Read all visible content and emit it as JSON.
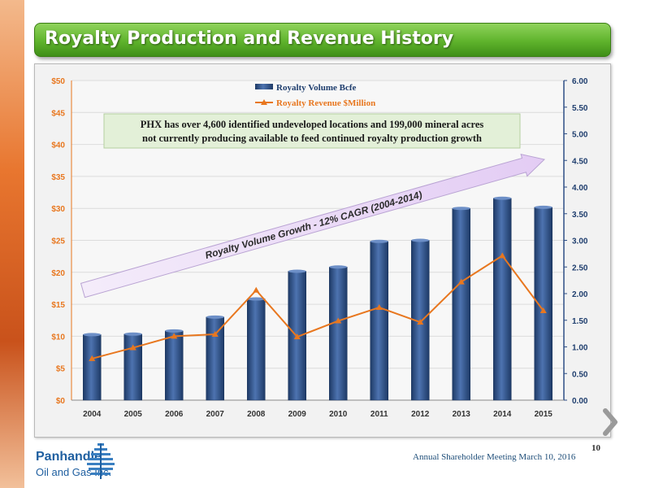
{
  "slide": {
    "title": "Royalty Production and Revenue History",
    "footer": "Annual Shareholder Meeting March 10, 2016",
    "page_number": "10",
    "logo_name": "Panhandle",
    "logo_sub": "Oil and Gas Inc."
  },
  "colors": {
    "bar": "#2e4f86",
    "line": "#e8771f",
    "title_green": "#5fb32c",
    "callout_bg": "#e3f0d8",
    "arrow_fill": "#e3ccf4"
  },
  "annotations": {
    "callout_line1": "PHX has over 4,600 identified undeveloped locations and 199,000 mineral acres",
    "callout_line2": "not currently producing available to feed continued royalty production growth",
    "growth_arrow": "Royalty Volume Growth - 12% CAGR (2004-2014)"
  },
  "chart_data": {
    "type": "bar",
    "categories": [
      "2004",
      "2005",
      "2006",
      "2007",
      "2008",
      "2009",
      "2010",
      "2011",
      "2012",
      "2013",
      "2014",
      "2015"
    ],
    "series": [
      {
        "name": "Royalty Volume Bcfe",
        "type": "bar",
        "axis": "right",
        "values": [
          1.23,
          1.24,
          1.3,
          1.56,
          1.9,
          2.42,
          2.5,
          2.98,
          3.0,
          3.6,
          3.79,
          3.62
        ]
      },
      {
        "name": "Royalty Revenue $Million",
        "type": "line",
        "axis": "left",
        "values": [
          6.5,
          8.2,
          10.0,
          10.3,
          17.2,
          9.9,
          12.4,
          14.5,
          12.2,
          18.5,
          22.6,
          14.0
        ]
      }
    ],
    "y_left": {
      "ylim": [
        0,
        50
      ],
      "ticks": [
        "$0",
        "$5",
        "$10",
        "$15",
        "$20",
        "$25",
        "$30",
        "$35",
        "$40",
        "$45",
        "$50"
      ]
    },
    "y_right": {
      "ylim": [
        0,
        6
      ],
      "ticks": [
        "0.00",
        "0.50",
        "1.00",
        "1.50",
        "2.00",
        "2.50",
        "3.00",
        "3.50",
        "4.00",
        "4.50",
        "5.00",
        "5.50",
        "6.00"
      ]
    },
    "legend_position": "top-center"
  }
}
